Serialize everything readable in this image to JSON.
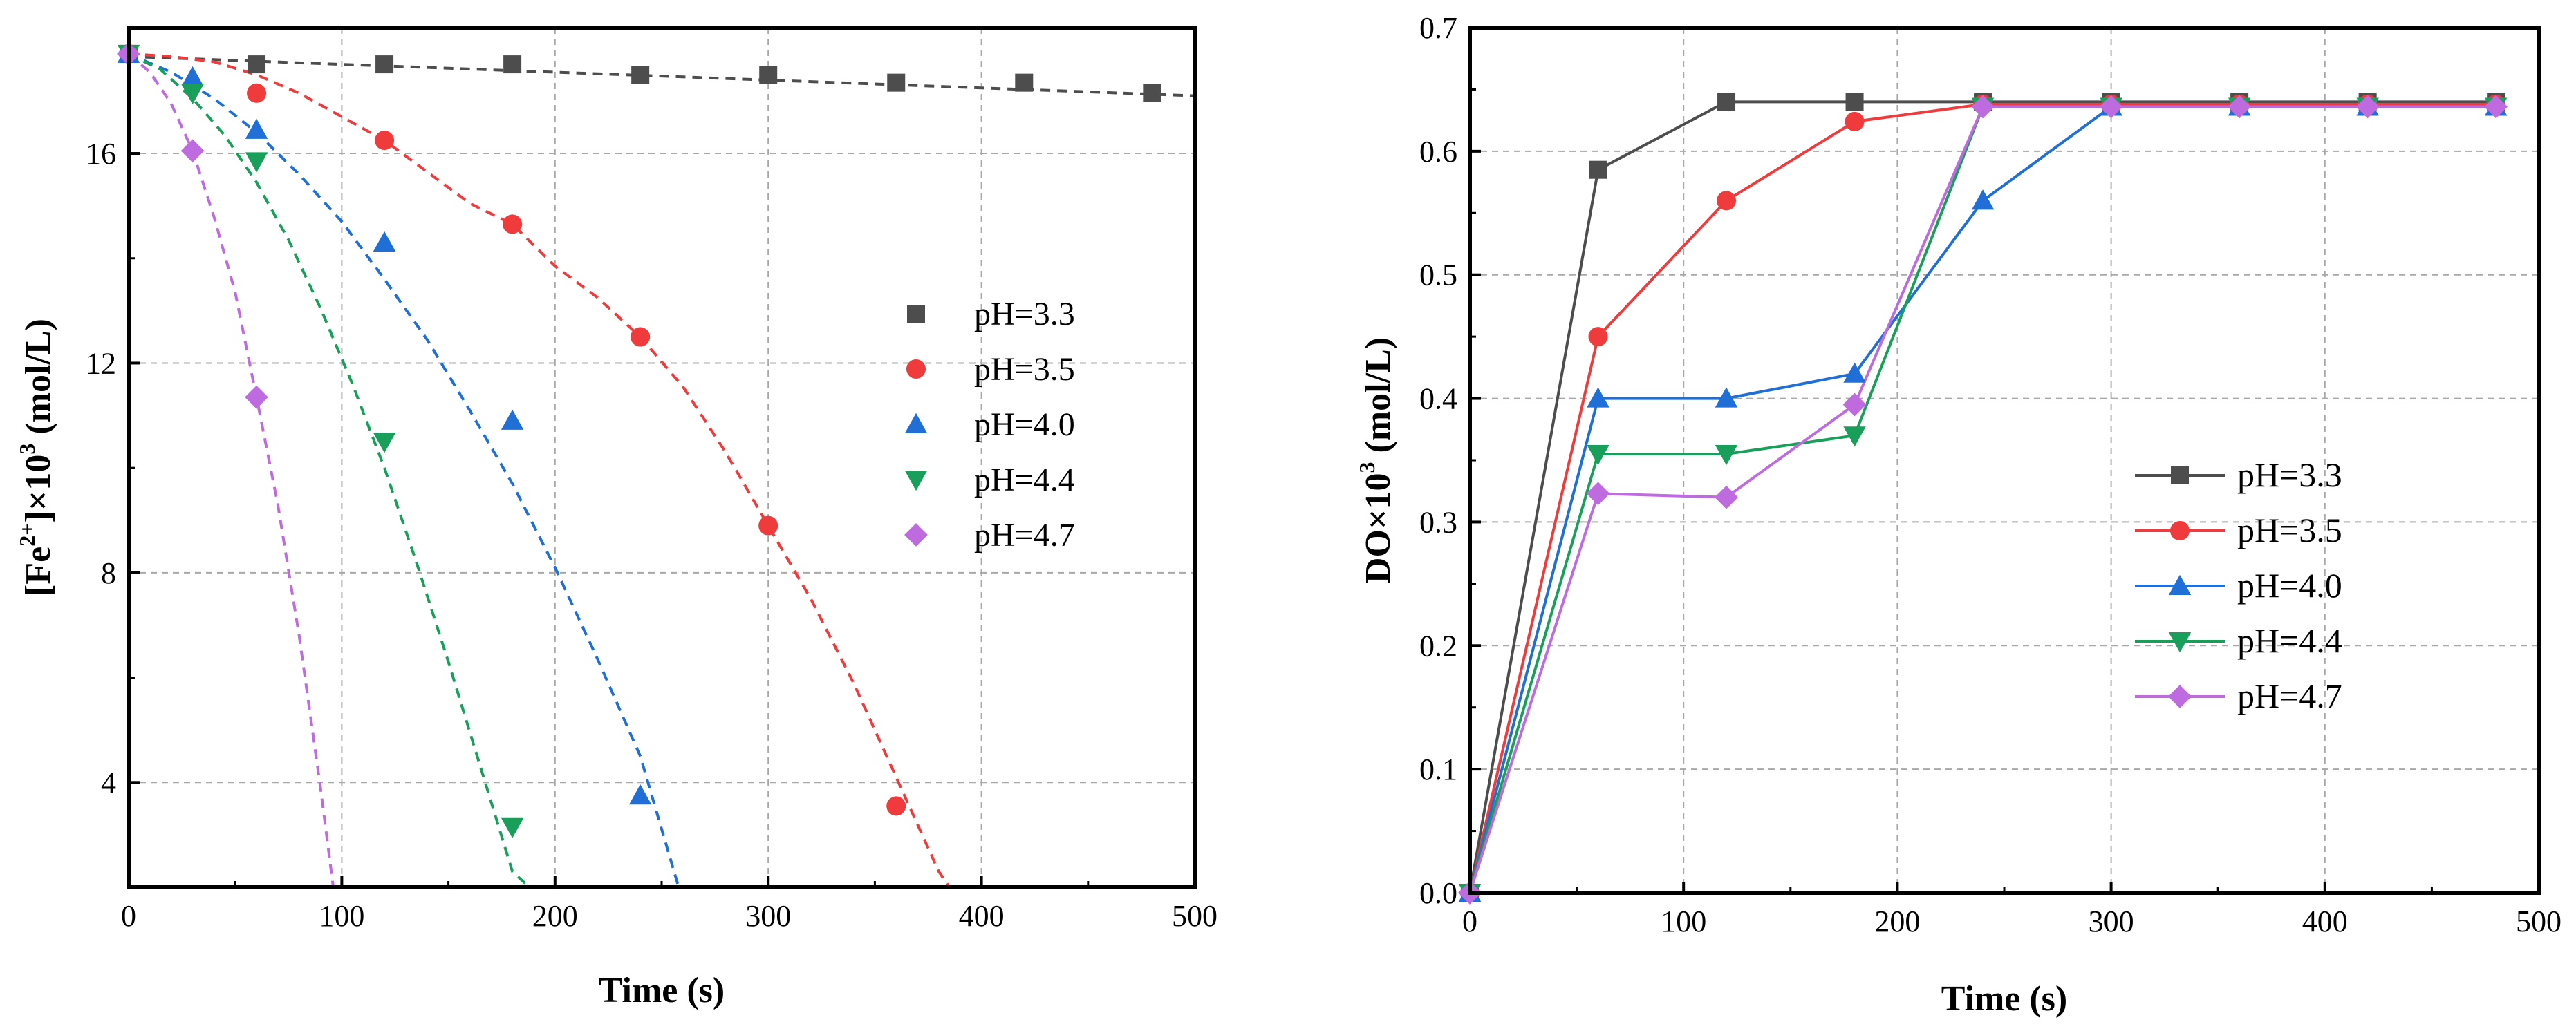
{
  "charts": [
    {
      "type": "scatter",
      "title": "",
      "xlabel": "Time (s)",
      "ylabel_parts": [
        "[Fe",
        "2+",
        "]×10",
        "3",
        " (mol/L)"
      ],
      "xlim": [
        0,
        500
      ],
      "ylim": [
        2,
        18.4
      ],
      "xticks": [
        0,
        100,
        200,
        300,
        400,
        500
      ],
      "yticks": [
        4,
        8,
        12,
        16
      ],
      "xtick_labels": [
        "0",
        "100",
        "200",
        "300",
        "400",
        "500"
      ],
      "ytick_labels": [
        "4",
        "8",
        "12",
        "16"
      ],
      "grid": true,
      "legend_position": "center-right",
      "series": [
        {
          "name": "pH=3.3",
          "color": "#4d4d4d",
          "marker": "square",
          "x": [
            0,
            60,
            120,
            180,
            240,
            300,
            360,
            420,
            480
          ],
          "y": [
            17.9,
            17.7,
            17.7,
            17.7,
            17.5,
            17.5,
            17.35,
            17.35,
            17.15
          ],
          "fit_x": [
            0,
            500
          ],
          "fit_y": [
            17.85,
            17.1
          ]
        },
        {
          "name": "pH=3.5",
          "color": "#ef3b3b",
          "marker": "circle",
          "x": [
            0,
            60,
            120,
            180,
            240,
            300,
            360
          ],
          "y": [
            17.9,
            17.15,
            16.25,
            14.65,
            12.5,
            8.9,
            3.55
          ],
          "fit_x": [
            0,
            20,
            40,
            60,
            80,
            100,
            120,
            140,
            160,
            180,
            200,
            220,
            240,
            260,
            280,
            300,
            320,
            340,
            360,
            380,
            385
          ],
          "fit_y": [
            17.9,
            17.85,
            17.75,
            17.5,
            17.15,
            16.7,
            16.25,
            15.65,
            15.05,
            14.65,
            13.85,
            13.25,
            12.5,
            11.55,
            10.3,
            8.9,
            7.5,
            5.9,
            4.1,
            2.3,
            2.0
          ]
        },
        {
          "name": "pH=4.0",
          "color": "#1f6fd6",
          "marker": "triangle-up",
          "x": [
            0,
            30,
            60,
            120,
            180,
            240
          ],
          "y": [
            17.9,
            17.45,
            16.45,
            14.3,
            10.9,
            3.75
          ],
          "fit_x": [
            0,
            20,
            40,
            60,
            80,
            100,
            120,
            140,
            160,
            180,
            200,
            220,
            240,
            258
          ],
          "fit_y": [
            17.9,
            17.55,
            17.05,
            16.4,
            15.6,
            14.7,
            13.6,
            12.45,
            11.1,
            9.7,
            8.1,
            6.35,
            4.5,
            2.0
          ]
        },
        {
          "name": "pH=4.4",
          "color": "#18a05a",
          "marker": "triangle-down",
          "x": [
            0,
            30,
            60,
            120,
            180
          ],
          "y": [
            17.9,
            17.15,
            15.85,
            10.5,
            3.15
          ],
          "fit_x": [
            0,
            15,
            30,
            45,
            60,
            75,
            90,
            105,
            120,
            135,
            150,
            165,
            180,
            188
          ],
          "fit_y": [
            17.9,
            17.6,
            17.05,
            16.35,
            15.45,
            14.35,
            13.05,
            11.6,
            10.0,
            8.2,
            6.3,
            4.3,
            2.3,
            2.0
          ]
        },
        {
          "name": "pH=4.7",
          "color": "#bf6be0",
          "marker": "diamond",
          "x": [
            0,
            30,
            60
          ],
          "y": [
            17.9,
            16.05,
            11.35
          ],
          "fit_x": [
            0,
            10,
            20,
            30,
            40,
            50,
            60,
            70,
            80,
            90,
            96
          ],
          "fit_y": [
            17.9,
            17.55,
            16.95,
            16.05,
            14.8,
            13.35,
            11.35,
            9.3,
            6.8,
            3.9,
            2.0
          ]
        }
      ]
    },
    {
      "type": "line",
      "title": "",
      "xlabel": "Time (s)",
      "ylabel_parts": [
        "DO×10",
        "3",
        " (mol/L)"
      ],
      "xlim": [
        0,
        500
      ],
      "ylim": [
        0,
        0.7
      ],
      "xticks": [
        0,
        100,
        200,
        300,
        400,
        500
      ],
      "yticks": [
        0,
        0.1,
        0.2,
        0.3,
        0.4,
        0.5,
        0.6,
        0.7
      ],
      "xtick_labels": [
        "0",
        "100",
        "200",
        "300",
        "400",
        "500"
      ],
      "ytick_labels": [
        "0.0",
        "0.1",
        "0.2",
        "0.3",
        "0.4",
        "0.5",
        "0.6",
        "0.7"
      ],
      "grid": true,
      "legend_position": "center-right",
      "series": [
        {
          "name": "pH=3.3",
          "color": "#4d4d4d",
          "marker": "square",
          "x": [
            0,
            60,
            120,
            180,
            240,
            300,
            360,
            420,
            480
          ],
          "y": [
            0.0,
            0.585,
            0.64,
            0.64,
            0.64,
            0.64,
            0.64,
            0.64,
            0.64
          ]
        },
        {
          "name": "pH=3.5",
          "color": "#ef3b3b",
          "marker": "circle",
          "x": [
            0,
            60,
            120,
            180,
            240,
            300,
            360,
            420,
            480
          ],
          "y": [
            0.0,
            0.45,
            0.56,
            0.624,
            0.638,
            0.638,
            0.638,
            0.638,
            0.638
          ]
        },
        {
          "name": "pH=4.0",
          "color": "#1f6fd6",
          "marker": "triangle-up",
          "x": [
            0,
            60,
            120,
            180,
            240,
            300,
            360,
            420,
            480
          ],
          "y": [
            0.0,
            0.4,
            0.4,
            0.42,
            0.56,
            0.636,
            0.636,
            0.636,
            0.636
          ]
        },
        {
          "name": "pH=4.4",
          "color": "#18a05a",
          "marker": "triangle-down",
          "x": [
            0,
            60,
            120,
            180,
            240,
            300,
            360,
            420,
            480
          ],
          "y": [
            0.0,
            0.355,
            0.355,
            0.37,
            0.636,
            0.636,
            0.636,
            0.636,
            0.636
          ]
        },
        {
          "name": "pH=4.7",
          "color": "#bf6be0",
          "marker": "diamond",
          "x": [
            0,
            60,
            120,
            180,
            240,
            300,
            360,
            420,
            480
          ],
          "y": [
            0.0,
            0.323,
            0.32,
            0.395,
            0.636,
            0.636,
            0.636,
            0.636,
            0.636
          ]
        }
      ]
    }
  ]
}
